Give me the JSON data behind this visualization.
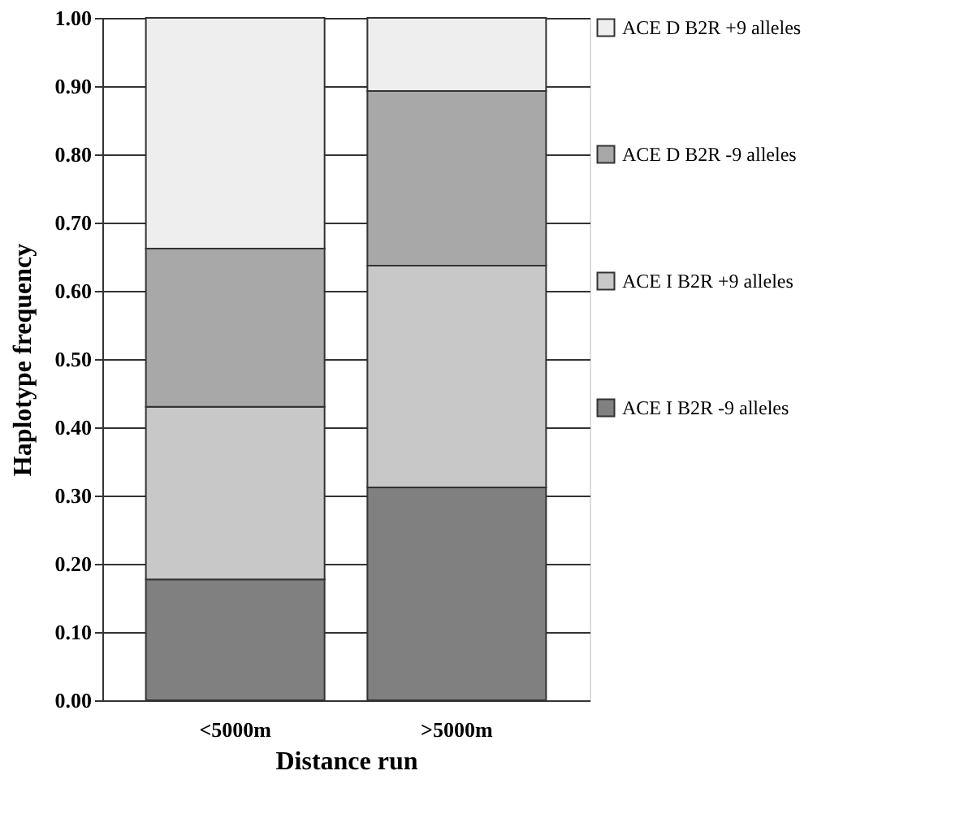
{
  "chart_data": {
    "type": "bar",
    "stacked": true,
    "xlabel": "Distance run",
    "ylabel": "Haplotype frequency",
    "categories": [
      "<5000m",
      ">5000m"
    ],
    "series": [
      {
        "name": "ACE I B2R -9 alleles",
        "color": "#808080",
        "values": [
          0.177,
          0.312
        ]
      },
      {
        "name": "ACE I B2R +9 alleles",
        "color": "#c8c8c8",
        "values": [
          0.253,
          0.325
        ]
      },
      {
        "name": "ACE D B2R -9 alleles",
        "color": "#a8a8a8",
        "values": [
          0.232,
          0.256
        ]
      },
      {
        "name": "ACE D B2R +9 alleles",
        "color": "#eeeeee",
        "values": [
          0.338,
          0.107
        ]
      }
    ],
    "ylim": [
      0,
      1
    ],
    "yticks": [
      {
        "value": 0,
        "label": "0.00"
      },
      {
        "value": 0.1,
        "label": "0.10"
      },
      {
        "value": 0.2,
        "label": "0.20"
      },
      {
        "value": 0.3,
        "label": "0.30"
      },
      {
        "value": 0.4,
        "label": "0.40"
      },
      {
        "value": 0.5,
        "label": "0.50"
      },
      {
        "value": 0.6,
        "label": "0.60"
      },
      {
        "value": 0.7,
        "label": "0.70"
      },
      {
        "value": 0.8,
        "label": "0.80"
      },
      {
        "value": 0.9,
        "label": "0.90"
      },
      {
        "value": 1,
        "label": "1.00"
      }
    ],
    "grid": "y",
    "legend": "right"
  }
}
